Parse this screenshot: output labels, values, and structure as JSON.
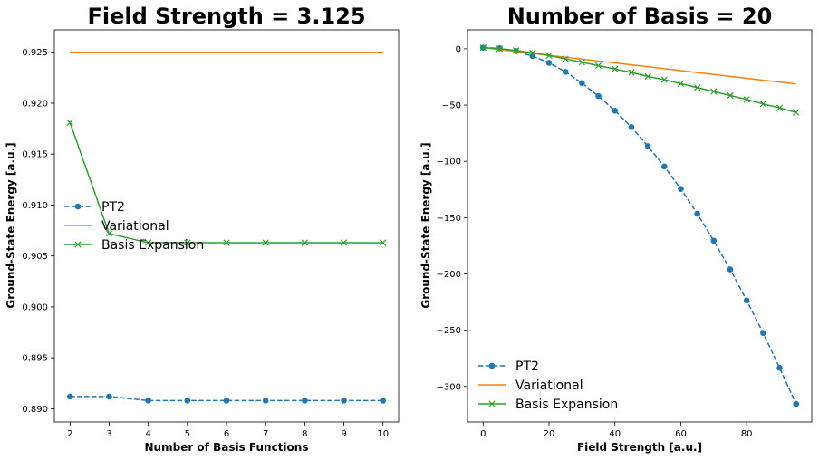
{
  "chart_data": [
    {
      "type": "line",
      "title": "Field Strength = 3.125",
      "xlabel": "Number of Basis Functions",
      "ylabel": "Ground-State Energy [a.u.]",
      "xlim": [
        1.6,
        10.4
      ],
      "ylim": [
        0.8887,
        0.9272
      ],
      "xticks": [
        2,
        3,
        4,
        5,
        6,
        7,
        8,
        9,
        10
      ],
      "yticks": [
        0.89,
        0.895,
        0.9,
        0.905,
        0.91,
        0.915,
        0.92,
        0.925
      ],
      "ytick_labels": [
        "0.890",
        "0.895",
        "0.900",
        "0.905",
        "0.910",
        "0.915",
        "0.920",
        "0.925"
      ],
      "legend_placement": "center-left",
      "grid": false,
      "x": [
        2,
        3,
        4,
        5,
        6,
        7,
        8,
        9,
        10
      ],
      "series": [
        {
          "name": "PT2",
          "color": "#1f77b4",
          "style": "dashed",
          "marker": "circle",
          "values": [
            0.8912,
            0.8912,
            0.8908,
            0.8908,
            0.8908,
            0.8908,
            0.8908,
            0.8908,
            0.8908
          ]
        },
        {
          "name": "Variational",
          "color": "#ff7f0e",
          "style": "solid",
          "marker": "none",
          "values": [
            0.925,
            0.925,
            0.925,
            0.925,
            0.925,
            0.925,
            0.925,
            0.925,
            0.925
          ]
        },
        {
          "name": "Basis Expansion",
          "color": "#2ca02c",
          "style": "solid",
          "marker": "x",
          "values": [
            0.9181,
            0.9072,
            0.9063,
            0.9063,
            0.9063,
            0.9063,
            0.9063,
            0.9063,
            0.9063
          ]
        }
      ]
    },
    {
      "type": "line",
      "title": "Number of Basis = 20",
      "xlabel": "Field Strength [a.u.]",
      "ylabel": "Ground-State Energy [a.u.]",
      "xlim": [
        -4.75,
        99.75
      ],
      "ylim": [
        -331.5,
        16.8
      ],
      "xticks": [
        0,
        20,
        40,
        60,
        80
      ],
      "yticks": [
        0,
        -50,
        -100,
        -150,
        -200,
        -250,
        -300
      ],
      "ytick_labels": [
        "0",
        "−50",
        "−100",
        "−150",
        "−200",
        "−250",
        "−300"
      ],
      "legend_placement": "lower-left",
      "grid": false,
      "x": [
        0,
        5,
        10,
        15,
        20,
        25,
        30,
        35,
        40,
        45,
        50,
        55,
        60,
        65,
        70,
        75,
        80,
        85,
        90,
        95
      ],
      "series": [
        {
          "name": "PT2",
          "color": "#1f77b4",
          "style": "dashed",
          "marker": "circle",
          "values": [
            1.0,
            0.5,
            -2.0,
            -6.5,
            -12.5,
            -20.5,
            -30.5,
            -42.0,
            -55.0,
            -69.5,
            -86.5,
            -104.5,
            -124.5,
            -146.5,
            -170.5,
            -196.0,
            -223.5,
            -252.5,
            -283.5,
            -315.5
          ]
        },
        {
          "name": "Variational",
          "color": "#ff7f0e",
          "style": "solid",
          "marker": "none",
          "values": [
            1.0,
            -0.7,
            -2.4,
            -4.1,
            -5.8,
            -7.5,
            -9.2,
            -10.9,
            -12.6,
            -14.3,
            -16.0,
            -17.7,
            -19.4,
            -21.1,
            -22.8,
            -24.5,
            -26.2,
            -27.9,
            -29.6,
            -31.3
          ]
        },
        {
          "name": "Basis Expansion",
          "color": "#2ca02c",
          "style": "solid",
          "marker": "x",
          "values": [
            1.0,
            0.0,
            -1.5,
            -3.5,
            -6.0,
            -9.0,
            -12.0,
            -15.0,
            -18.0,
            -21.0,
            -24.5,
            -27.5,
            -31.0,
            -34.5,
            -38.0,
            -41.5,
            -45.0,
            -49.0,
            -52.5,
            -56.5
          ]
        }
      ]
    }
  ]
}
